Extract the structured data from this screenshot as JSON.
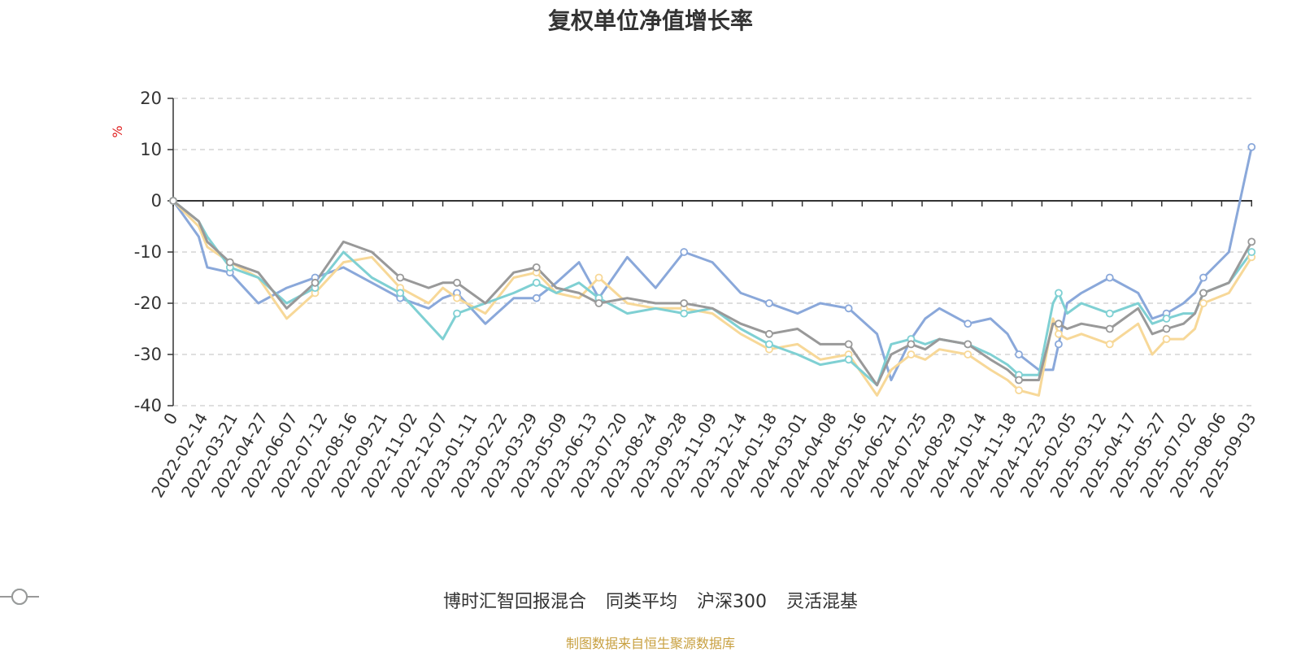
{
  "chart_data": {
    "type": "line",
    "title": "复权单位净值增长率",
    "ylabel": "%",
    "xlabel": "",
    "ylim": [
      -40,
      20
    ],
    "yticks": [
      20,
      10,
      0,
      -10,
      -20,
      -30,
      -40
    ],
    "grid": true,
    "legend_position": "bottom-center",
    "x_tick_labels": [
      "0",
      "2022-02-14",
      "2022-03-21",
      "2022-04-27",
      "2022-06-07",
      "2022-07-12",
      "2022-08-16",
      "2022-09-21",
      "2022-11-02",
      "2022-12-07",
      "2023-01-11",
      "2023-02-22",
      "2023-03-29",
      "2023-05-09",
      "2023-06-13",
      "2023-07-20",
      "2023-08-24",
      "2023-09-28",
      "2023-11-09",
      "2023-12-14",
      "2024-01-18",
      "2024-03-01",
      "2024-04-08",
      "2024-05-16",
      "2024-06-21",
      "2024-07-25",
      "2024-08-29",
      "2024-10-14",
      "2024-11-18",
      "2024-12-23",
      "2025-02-05",
      "2025-03-12",
      "2025-04-17",
      "2025-05-27",
      "2025-07-02",
      "2025-08-06",
      "2025-09-03"
    ],
    "x_end": 36.5,
    "series": [
      {
        "name": "博时汇智回报混合",
        "color": "#8aa8da",
        "values": [
          0,
          -7,
          -13,
          -14,
          -20,
          -17,
          -15,
          -13,
          -16,
          -19,
          -21,
          -19,
          -18,
          -24,
          -19,
          -19,
          -16,
          -12,
          -19,
          -11,
          -17,
          -10,
          -12,
          -18,
          -20,
          -22,
          -20,
          -21,
          -26,
          -35,
          -27,
          -23,
          -21,
          -24,
          -23,
          -26,
          -30,
          -33,
          -33,
          -28,
          -20,
          -18,
          -15,
          -18,
          -23,
          -22,
          -20,
          -18,
          -15,
          -10,
          10.5
        ],
        "x": [
          0,
          0.9,
          1.2,
          2,
          3,
          4,
          5,
          6,
          7,
          8,
          9,
          9.5,
          10,
          11,
          12,
          12.8,
          13.5,
          14.3,
          15,
          16,
          17,
          18,
          19,
          20,
          21,
          22,
          22.8,
          23.8,
          24.8,
          25.3,
          26,
          26.5,
          27,
          28,
          28.8,
          29.4,
          29.8,
          30.5,
          31,
          31.2,
          31.5,
          32,
          33,
          34,
          34.5,
          35,
          35.6,
          36,
          36.3,
          37.2,
          38
        ]
      },
      {
        "name": "同类平均",
        "color": "#f7d898",
        "values": [
          0,
          -5,
          -9,
          -12,
          -15,
          -23,
          -18,
          -12,
          -11,
          -17,
          -20,
          -17,
          -19,
          -22,
          -15,
          -14,
          -18,
          -19,
          -15,
          -20,
          -21,
          -21,
          -22,
          -26,
          -29,
          -28,
          -31,
          -30,
          -38,
          -33,
          -30,
          -31,
          -29,
          -30,
          -33,
          -35,
          -37,
          -38,
          -23,
          -26,
          -27,
          -26,
          -28,
          -24,
          -30,
          -27,
          -27,
          -25,
          -20,
          -18,
          -11
        ],
        "x": [
          0,
          0.9,
          1.2,
          2,
          3,
          4,
          5,
          6,
          7,
          8,
          9,
          9.5,
          10,
          11,
          12,
          12.8,
          13.5,
          14.3,
          15,
          16,
          17,
          18,
          19,
          20,
          21,
          22,
          22.8,
          23.8,
          24.8,
          25.3,
          26,
          26.5,
          27,
          28,
          28.8,
          29.4,
          29.8,
          30.5,
          31,
          31.2,
          31.5,
          32,
          33,
          34,
          34.5,
          35,
          35.6,
          36,
          36.3,
          37.2,
          38
        ]
      },
      {
        "name": "沪深300",
        "color": "#7fd0d3",
        "values": [
          0,
          -4,
          -7,
          -13,
          -15,
          -20,
          -17,
          -10,
          -15,
          -18,
          -24,
          -27,
          -22,
          -20,
          -18,
          -16,
          -18,
          -16,
          -19,
          -22,
          -21,
          -22,
          -21,
          -25,
          -28,
          -30,
          -32,
          -31,
          -36,
          -28,
          -27,
          -28,
          -27,
          -28,
          -30,
          -32,
          -34,
          -34,
          -20,
          -18,
          -22,
          -20,
          -22,
          -20,
          -24,
          -23,
          -22,
          -22,
          -18,
          -16,
          -10
        ],
        "x": [
          0,
          0.9,
          1.2,
          2,
          3,
          4,
          5,
          6,
          7,
          8,
          9,
          9.5,
          10,
          11,
          12,
          12.8,
          13.5,
          14.3,
          15,
          16,
          17,
          18,
          19,
          20,
          21,
          22,
          22.8,
          23.8,
          24.8,
          25.3,
          26,
          26.5,
          27,
          28,
          28.8,
          29.4,
          29.8,
          30.5,
          31,
          31.2,
          31.5,
          32,
          33,
          34,
          34.5,
          35,
          35.6,
          36,
          36.3,
          37.2,
          38
        ]
      },
      {
        "name": "灵活混基",
        "color": "#999999",
        "values": [
          0,
          -4,
          -8,
          -12,
          -14,
          -21,
          -16,
          -8,
          -10,
          -15,
          -17,
          -16,
          -16,
          -20,
          -14,
          -13,
          -17,
          -18,
          -20,
          -19,
          -20,
          -20,
          -21,
          -24,
          -26,
          -25,
          -28,
          -28,
          -36,
          -30,
          -28,
          -29,
          -27,
          -28,
          -31,
          -33,
          -35,
          -35,
          -24,
          -24,
          -25,
          -24,
          -25,
          -21,
          -26,
          -25,
          -24,
          -22,
          -18,
          -16,
          -8
        ],
        "x": [
          0,
          0.9,
          1.2,
          2,
          3,
          4,
          5,
          6,
          7,
          8,
          9,
          9.5,
          10,
          11,
          12,
          12.8,
          13.5,
          14.3,
          15,
          16,
          17,
          18,
          19,
          20,
          21,
          22,
          22.8,
          23.8,
          24.8,
          25.3,
          26,
          26.5,
          27,
          28,
          28.8,
          29.4,
          29.8,
          30.5,
          31,
          31.2,
          31.5,
          32,
          33,
          34,
          34.5,
          35,
          35.6,
          36,
          36.3,
          37.2,
          38
        ]
      }
    ]
  },
  "source_text": "制图数据来自恒生聚源数据库",
  "colors": {
    "title": "#333333",
    "axis": "#333333",
    "ylabel": "#e02020",
    "grid": "#cccccc",
    "source": "#c8a040"
  }
}
